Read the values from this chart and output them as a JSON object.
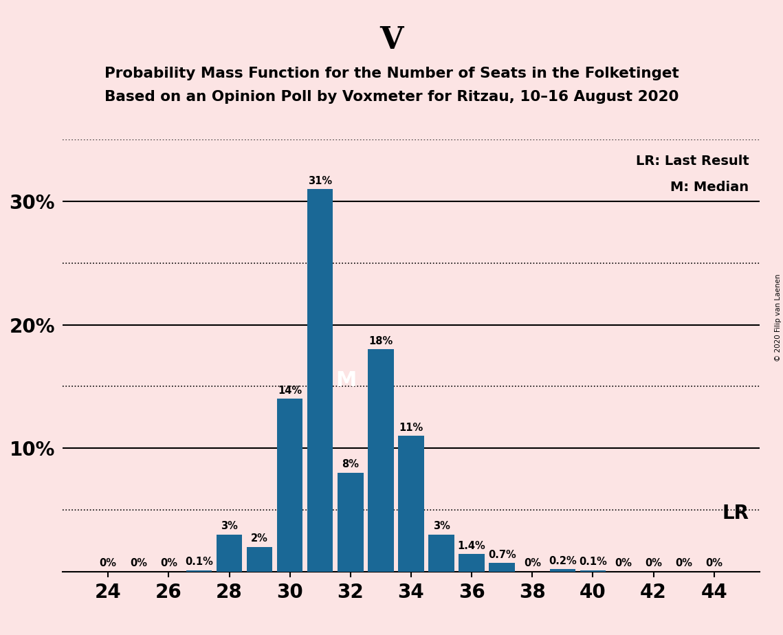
{
  "title_party": "V",
  "title_line1": "Probability Mass Function for the Number of Seats in the Folketinget",
  "title_line2": "Based on an Opinion Poll by Voxmeter for Ritzau, 10–16 August 2020",
  "copyright": "© 2020 Filip van Laenen",
  "seats": [
    24,
    25,
    26,
    27,
    28,
    29,
    30,
    31,
    32,
    33,
    34,
    35,
    36,
    37,
    38,
    39,
    40,
    41,
    42,
    43,
    44
  ],
  "probabilities": [
    0.0,
    0.0,
    0.0,
    0.1,
    3.0,
    2.0,
    14.0,
    31.0,
    8.0,
    18.0,
    11.0,
    3.0,
    1.4,
    0.7,
    0.0,
    0.2,
    0.1,
    0.0,
    0.0,
    0.0,
    0.0
  ],
  "labels": [
    "0%",
    "0%",
    "0%",
    "0.1%",
    "3%",
    "2%",
    "14%",
    "31%",
    "8%",
    "18%",
    "11%",
    "3%",
    "1.4%",
    "0.7%",
    "0%",
    "0.2%",
    "0.1%",
    "0%",
    "0%",
    "0%",
    "0%"
  ],
  "bar_color": "#1a6896",
  "background_color": "#fce4e4",
  "lr_seat": 39,
  "lr_label": "LR",
  "median_seat": 31,
  "median_label": "M",
  "solid_grid": [
    10,
    20,
    30
  ],
  "dotted_grid": [
    5,
    15,
    25,
    35
  ],
  "xlim": [
    22.5,
    45.5
  ],
  "ylim": [
    0,
    35
  ],
  "bar_width": 0.85
}
